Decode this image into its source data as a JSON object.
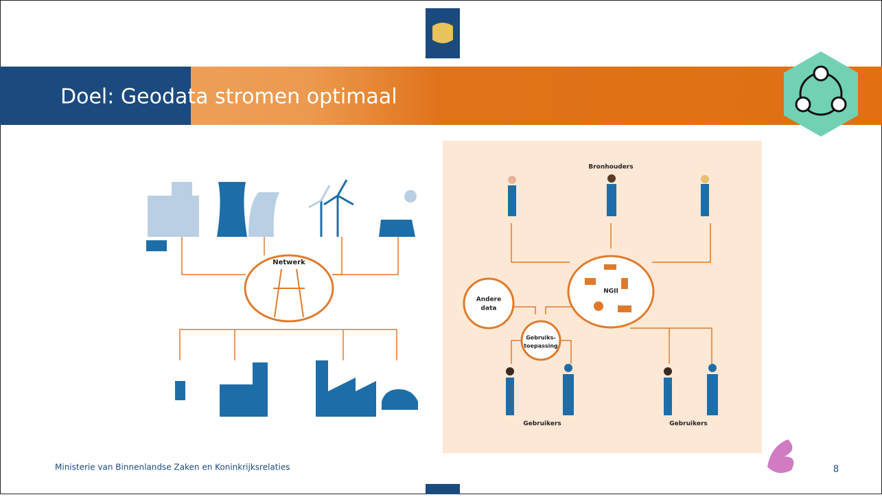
{
  "header": {
    "title": "Doel: Geodata stromen optimaal"
  },
  "left_diagram": {
    "hub": "Netwerk"
  },
  "right_diagram": {
    "sources": "Bronhouders",
    "hub": "NGII",
    "other": [
      "Andere",
      "data"
    ],
    "application": [
      "Gebruiks-",
      "toepassing"
    ],
    "users": [
      "Gebruikers",
      "Gebruikers"
    ]
  },
  "footer": {
    "organization": "Ministerie van Binnenlandse Zaken en Koninkrijksrelaties",
    "page": "8"
  }
}
